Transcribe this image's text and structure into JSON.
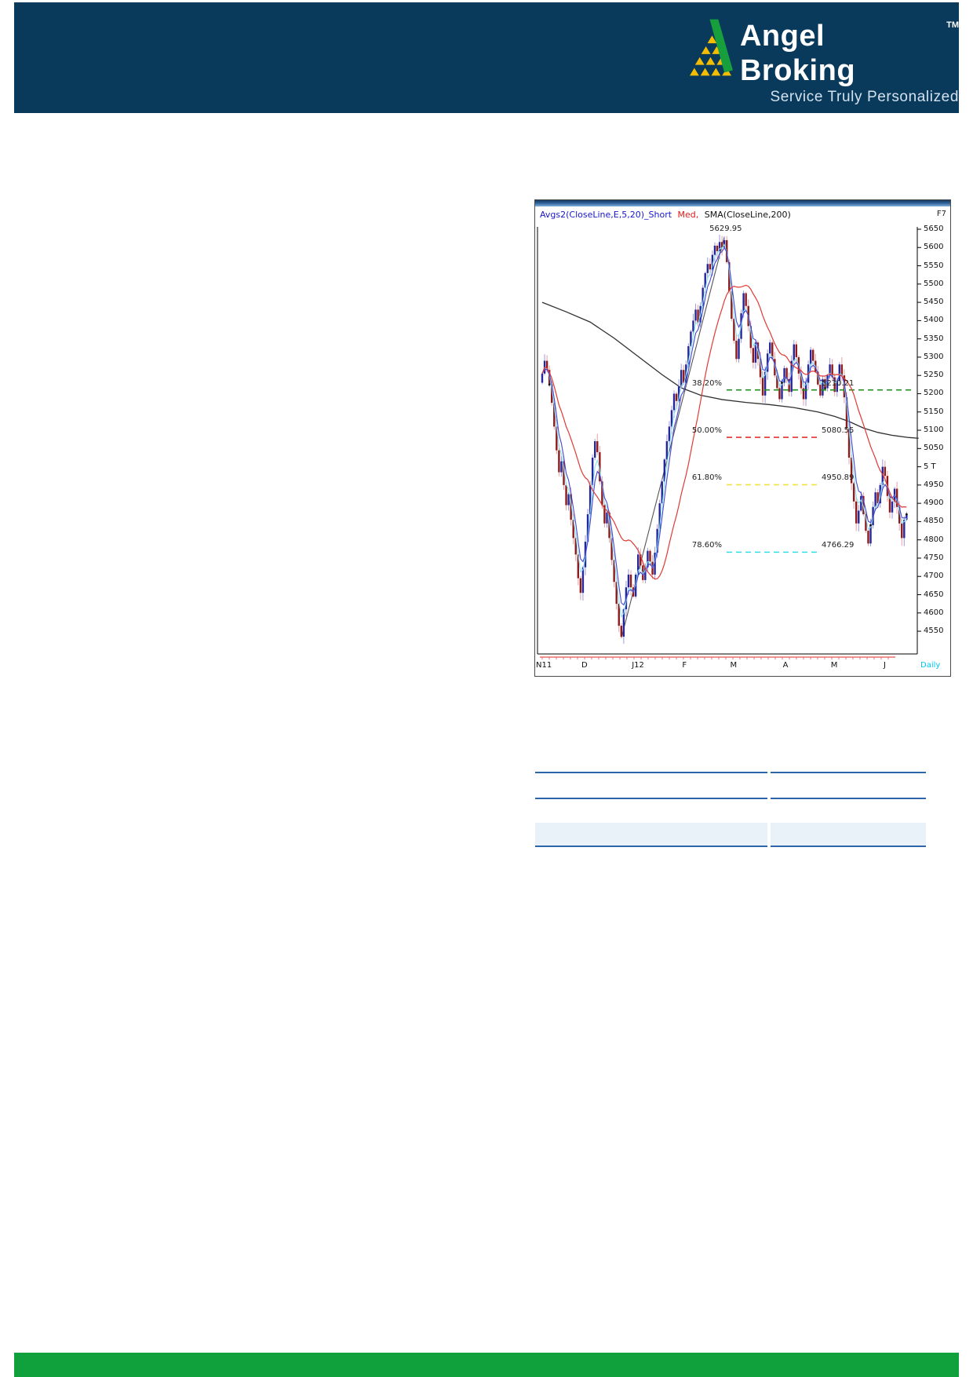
{
  "header": {
    "brand": "Angel Broking",
    "trademark": "TM",
    "tagline": "Service Truly Personalized",
    "bg_color": "#09395B",
    "logo_yellow": "#F5BD02",
    "logo_green": "#169F3C"
  },
  "chart": {
    "legend_short": "Avgs2(CloseLine,E,5,20)_Short",
    "legend_med": "Med,",
    "legend_sma": "SMA(CloseLine,200)",
    "fkey": "F7",
    "timeframe": "Daily",
    "timeframe_color": "#00C8F0"
  },
  "chart_data": {
    "type": "candlestick",
    "title": "Avgs2(CloseLine,E,5,20)_Short Med, SMA(CloseLine,200)",
    "ylim": [
      4500,
      5680
    ],
    "grid": false,
    "y_ticks": [
      {
        "p": 5650,
        "l": "5650"
      },
      {
        "p": 5600,
        "l": "5600"
      },
      {
        "p": 5550,
        "l": "5550"
      },
      {
        "p": 5500,
        "l": "5500"
      },
      {
        "p": 5450,
        "l": "5450"
      },
      {
        "p": 5400,
        "l": "5400"
      },
      {
        "p": 5350,
        "l": "5350"
      },
      {
        "p": 5300,
        "l": "5300"
      },
      {
        "p": 5250,
        "l": "5250"
      },
      {
        "p": 5200,
        "l": "5200"
      },
      {
        "p": 5150,
        "l": "5150"
      },
      {
        "p": 5100,
        "l": "5100"
      },
      {
        "p": 5050,
        "l": "5050"
      },
      {
        "p": 5000,
        "l": "5 T"
      },
      {
        "p": 4950,
        "l": "4950"
      },
      {
        "p": 4900,
        "l": "4900"
      },
      {
        "p": 4850,
        "l": "4850"
      },
      {
        "p": 4800,
        "l": "4800"
      },
      {
        "p": 4750,
        "l": "4750"
      },
      {
        "p": 4700,
        "l": "4700"
      },
      {
        "p": 4650,
        "l": "4650"
      },
      {
        "p": 4600,
        "l": "4600"
      },
      {
        "p": 4550,
        "l": "4550"
      }
    ],
    "x_labels": [
      {
        "d": 0,
        "l": "N11"
      },
      {
        "d": 19,
        "l": "D"
      },
      {
        "d": 40,
        "l": "J12"
      },
      {
        "d": 61,
        "l": "F"
      },
      {
        "d": 81,
        "l": "M"
      },
      {
        "d": 103,
        "l": "A"
      },
      {
        "d": 123,
        "l": "M"
      },
      {
        "d": 145,
        "l": "J"
      }
    ],
    "closes": [
      5255,
      5290,
      5265,
      5225,
      5175,
      5110,
      5045,
      4985,
      5015,
      4950,
      4895,
      4925,
      4855,
      4805,
      4760,
      4695,
      4655,
      4725,
      4795,
      4870,
      4950,
      5025,
      5070,
      5040,
      4960,
      4895,
      4845,
      4875,
      4805,
      4745,
      4685,
      4625,
      4565,
      4535,
      4610,
      4670,
      4705,
      4670,
      4645,
      4705,
      4760,
      4730,
      4690,
      4725,
      4770,
      4740,
      4705,
      4765,
      4830,
      4900,
      4960,
      5020,
      5070,
      5110,
      5155,
      5200,
      5180,
      5220,
      5265,
      5230,
      5280,
      5330,
      5370,
      5400,
      5430,
      5395,
      5440,
      5490,
      5530,
      5555,
      5540,
      5580,
      5605,
      5590,
      5615,
      5600,
      5620,
      5560,
      5480,
      5405,
      5345,
      5295,
      5350,
      5420,
      5475,
      5440,
      5385,
      5325,
      5285,
      5340,
      5295,
      5245,
      5195,
      5260,
      5310,
      5340,
      5295,
      5250,
      5215,
      5185,
      5230,
      5270,
      5240,
      5205,
      5290,
      5335,
      5300,
      5255,
      5215,
      5185,
      5230,
      5280,
      5320,
      5290,
      5260,
      5225,
      5195,
      5240,
      5215,
      5250,
      5280,
      5245,
      5205,
      5235,
      5280,
      5250,
      5190,
      5105,
      5025,
      4955,
      4905,
      4845,
      4880,
      4920,
      4870,
      4825,
      4790,
      4840,
      4890,
      4930,
      4900,
      4950,
      5000,
      4975,
      4920,
      4875,
      4905,
      4940,
      4890,
      4845,
      4805,
      4855,
      4870
    ],
    "series": [
      {
        "name": "Short (EMA 5)",
        "color": "#4646D2",
        "derived": "ema5_of_closes"
      },
      {
        "name": "Med (SMA 20)",
        "color": "#E03A34",
        "derived": "sma20_of_closes"
      },
      {
        "name": "SMA(CloseLine,200)",
        "color": "#303030",
        "waypoints": [
          [
            0,
            5450
          ],
          [
            10,
            5424
          ],
          [
            20,
            5396
          ],
          [
            30,
            5352
          ],
          [
            40,
            5302
          ],
          [
            50,
            5252
          ],
          [
            58,
            5216
          ],
          [
            66,
            5196
          ],
          [
            75,
            5184
          ],
          [
            85,
            5176
          ],
          [
            95,
            5170
          ],
          [
            105,
            5162
          ],
          [
            115,
            5150
          ],
          [
            122,
            5138
          ],
          [
            128,
            5124
          ],
          [
            134,
            5106
          ],
          [
            140,
            5094
          ],
          [
            146,
            5086
          ],
          [
            153,
            5080
          ],
          [
            157,
            5078
          ]
        ]
      }
    ],
    "fib_levels": [
      {
        "pct": "38.20%",
        "label": "5210.21",
        "price": 5210.21,
        "color": "#1f8f1f"
      },
      {
        "pct": "50.00%",
        "label": "5080.55",
        "price": 5080.55,
        "color": "#e83030"
      },
      {
        "pct": "61.80%",
        "label": "4950.89",
        "price": 4950.89,
        "color": "#f0e242"
      },
      {
        "pct": "78.60%",
        "label": "4766.29",
        "price": 4766.29,
        "color": "#35dfe8"
      }
    ],
    "trendline": {
      "from_day": 33,
      "from_price": 4531.15,
      "to_day": 76,
      "to_price": 5629.95,
      "color": "#555555"
    },
    "annotation_peak": {
      "day": 76,
      "price": 5629.95,
      "label": "5629.95"
    },
    "swing_low": {
      "day": 33,
      "price": 4531.15
    },
    "close_dots": [
      3,
      100,
      118,
      137,
      152
    ],
    "candle_up_color": "#26269B",
    "candle_down_color": "#8F1A1A",
    "candle_up_wick": "#9a9ae0",
    "candle_down_wick": "#e8a0a0",
    "base_strip_color": "#E87070"
  },
  "summary_table": {
    "rule_color": "#2E64A8",
    "band_color": "#E9F1F9",
    "columns": 2,
    "rows_visible_text": ""
  },
  "footer": {
    "bg_color": "#10A13C"
  }
}
